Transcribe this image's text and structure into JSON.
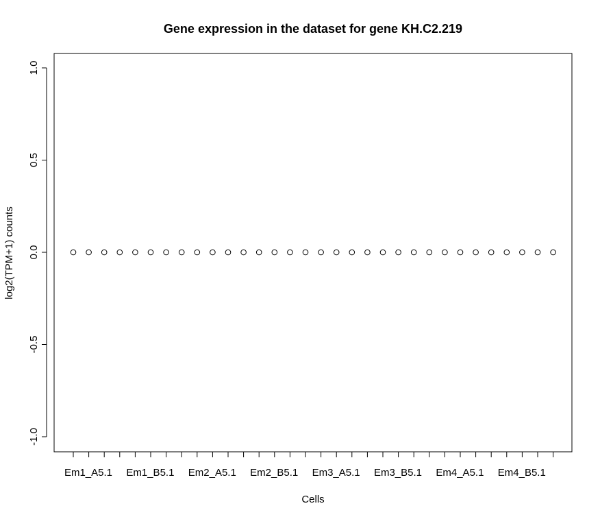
{
  "chart_data": {
    "type": "scatter",
    "title": "Gene expression in the dataset for gene KH.C2.219",
    "xlabel": "Cells",
    "ylabel": "log2(TPM+1) counts",
    "ylim": [
      -1.0,
      1.0
    ],
    "yticks": [
      "-1.0",
      "-0.5",
      "0.0",
      "0.5",
      "1.0"
    ],
    "ytick_values": [
      -1.0,
      -0.5,
      0.0,
      0.5,
      1.0
    ],
    "x_tick_labels": [
      {
        "index": 1,
        "label": "Em1_A5.1"
      },
      {
        "index": 5,
        "label": "Em1_B5.1"
      },
      {
        "index": 9,
        "label": "Em2_A5.1"
      },
      {
        "index": 13,
        "label": "Em2_B5.1"
      },
      {
        "index": 17,
        "label": "Em3_A5.1"
      },
      {
        "index": 21,
        "label": "Em3_B5.1"
      },
      {
        "index": 25,
        "label": "Em4_A5.1"
      },
      {
        "index": 29,
        "label": "Em4_B5.1"
      }
    ],
    "x": [
      1,
      2,
      3,
      4,
      5,
      6,
      7,
      8,
      9,
      10,
      11,
      12,
      13,
      14,
      15,
      16,
      17,
      18,
      19,
      20,
      21,
      22,
      23,
      24,
      25,
      26,
      27,
      28,
      29,
      30,
      31,
      32
    ],
    "values": [
      0,
      0,
      0,
      0,
      0,
      0,
      0,
      0,
      0,
      0,
      0,
      0,
      0,
      0,
      0,
      0,
      0,
      0,
      0,
      0,
      0,
      0,
      0,
      0,
      0,
      0,
      0,
      0,
      0,
      0,
      0,
      0
    ],
    "marker": "open-circle",
    "grid": false,
    "legend": "none"
  }
}
